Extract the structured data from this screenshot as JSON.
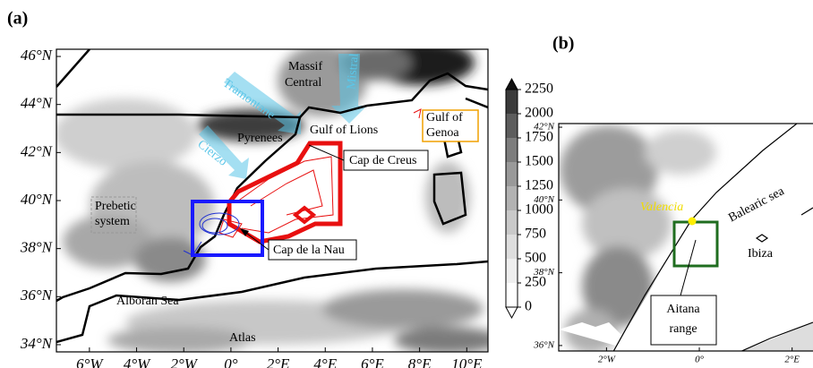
{
  "panels": [
    {
      "label": "(a)",
      "xlim": [
        -7.4,
        10.9
      ],
      "ylim": [
        33.7,
        46.3
      ],
      "xticks": [
        {
          "value": -6,
          "label": "6°W"
        },
        {
          "value": -4,
          "label": "4°W"
        },
        {
          "value": -2,
          "label": "2°W"
        },
        {
          "value": 0,
          "label": "0°"
        },
        {
          "value": 2,
          "label": "2°E"
        },
        {
          "value": 4,
          "label": "4°E"
        },
        {
          "value": 6,
          "label": "6°E"
        },
        {
          "value": 8,
          "label": "8°E"
        },
        {
          "value": 10,
          "label": "10°E"
        }
      ],
      "yticks": [
        {
          "value": 34,
          "label": "34°N"
        },
        {
          "value": 36,
          "label": "36°N"
        },
        {
          "value": 38,
          "label": "38°N"
        },
        {
          "value": 40,
          "label": "40°N"
        },
        {
          "value": 42,
          "label": "42°N"
        },
        {
          "value": 44,
          "label": "44°N"
        },
        {
          "value": 46,
          "label": "46°N"
        }
      ],
      "places": [
        [
          "Massif",
          "Central"
        ],
        [
          "Mistral"
        ],
        [
          "Tramontane"
        ],
        [
          "Pyrenees"
        ],
        [
          "Gulf of Lions"
        ],
        [
          "Gulf of",
          "Genoa"
        ],
        [
          "Cierzo"
        ],
        [
          "Cap de Creus"
        ],
        [
          "Prebetic",
          "system"
        ],
        [
          "Cap de la Nau"
        ],
        [
          "Alboran Sea"
        ],
        [
          "Atlas"
        ]
      ]
    },
    {
      "label": "(b)",
      "xlim": [
        -3.03,
        2.45
      ],
      "ylim": [
        35.85,
        42.1
      ],
      "xticks": [
        {
          "value": -2,
          "label": "2°W"
        },
        {
          "value": 0,
          "label": "0°"
        },
        {
          "value": 2,
          "label": "2°E"
        }
      ],
      "yticks": [
        {
          "value": 36,
          "label": "36°N"
        },
        {
          "value": 38,
          "label": "38°N"
        },
        {
          "value": 40,
          "label": "40°N"
        },
        {
          "value": 42,
          "label": "42°N"
        }
      ],
      "places": [
        [
          "Valencia"
        ],
        [
          "Balearic sea"
        ],
        [
          "Ibiza"
        ],
        [
          "Aitana",
          "range"
        ]
      ]
    }
  ],
  "colorbar": {
    "lim": [
      0,
      2250
    ],
    "ticks": [
      0,
      250,
      500,
      750,
      1000,
      1250,
      1500,
      1750,
      2000,
      2250
    ],
    "colors": [
      "#ffffff",
      "#efefef",
      "#dedede",
      "#c9c9c9",
      "#b2b2b2",
      "#999999",
      "#7d7d7d",
      "#5d5d5d",
      "#3b3b3b"
    ]
  }
}
